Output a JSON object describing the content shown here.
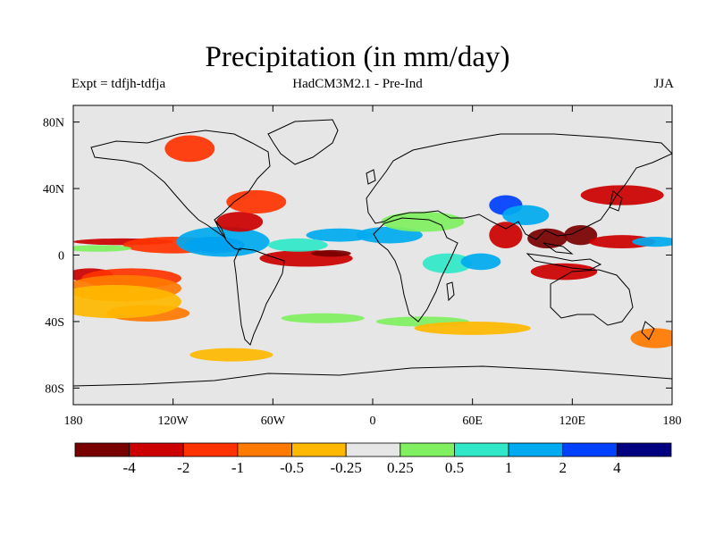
{
  "title": "Precipitation (in mm/day)",
  "subtitle_left": "Expt = tdfjh-tdfja",
  "subtitle_center": "HadCM3M2.1 - Pre-Ind",
  "subtitle_right": "JJA",
  "map": {
    "lon_range": [
      -180,
      180
    ],
    "lat_range": [
      -90,
      90
    ],
    "background_color": "#e6e6e6",
    "lon_ticks": [
      {
        "value": -180,
        "label": "180"
      },
      {
        "value": -120,
        "label": "120W"
      },
      {
        "value": -60,
        "label": "60W"
      },
      {
        "value": 0,
        "label": "0"
      },
      {
        "value": 60,
        "label": "60E"
      },
      {
        "value": 120,
        "label": "120E"
      },
      {
        "value": 180,
        "label": "180"
      }
    ],
    "lat_ticks": [
      {
        "value": 80,
        "label": "80N"
      },
      {
        "value": 40,
        "label": "40N"
      },
      {
        "value": 0,
        "label": "0"
      },
      {
        "value": -40,
        "label": "40S"
      },
      {
        "value": -80,
        "label": "80S"
      }
    ]
  },
  "colorbar": {
    "colors": [
      "#7a0000",
      "#cc0000",
      "#ff3300",
      "#ff7a00",
      "#ffb800",
      "#e6e6e6",
      "#80f060",
      "#30e8c8",
      "#00aaf0",
      "#0040ff",
      "#000080"
    ],
    "labels": [
      "-4",
      "-2",
      "-1",
      "-0.5",
      "-0.25",
      "0.25",
      "0.5",
      "1",
      "2",
      "4"
    ]
  },
  "chart_data": {
    "type": "heatmap",
    "title": "Precipitation (in mm/day)",
    "variable": "precipitation anomaly (mm/day)",
    "season": "JJA",
    "levels": [
      -4,
      -2,
      -1,
      -0.5,
      -0.25,
      0.25,
      0.5,
      1,
      2,
      4
    ],
    "features": [
      {
        "lon": -170,
        "lat": -12,
        "value": -2,
        "rx": 14,
        "ry": 4
      },
      {
        "lon": -145,
        "lat": -14,
        "value": -1,
        "rx": 30,
        "ry": 6
      },
      {
        "lon": -150,
        "lat": -20,
        "value": -0.5,
        "rx": 35,
        "ry": 8
      },
      {
        "lon": -135,
        "lat": -35,
        "value": -0.5,
        "rx": 25,
        "ry": 5
      },
      {
        "lon": -155,
        "lat": -28,
        "value": -0.25,
        "rx": 40,
        "ry": 10
      },
      {
        "lon": -150,
        "lat": 8,
        "value": -2,
        "rx": 30,
        "ry": 2
      },
      {
        "lon": -120,
        "lat": 6,
        "value": -1,
        "rx": 30,
        "ry": 5
      },
      {
        "lon": -165,
        "lat": 4,
        "value": 0.5,
        "rx": 20,
        "ry": 2
      },
      {
        "lon": -95,
        "lat": 6,
        "value": 4,
        "rx": 18,
        "ry": 5
      },
      {
        "lon": -90,
        "lat": 8,
        "value": 2,
        "rx": 28,
        "ry": 9
      },
      {
        "lon": -80,
        "lat": 20,
        "value": -2,
        "rx": 14,
        "ry": 6
      },
      {
        "lon": -70,
        "lat": 32,
        "value": -1,
        "rx": 18,
        "ry": 7
      },
      {
        "lon": -40,
        "lat": -2,
        "value": -2,
        "rx": 28,
        "ry": 5
      },
      {
        "lon": -25,
        "lat": 1,
        "value": -4,
        "rx": 12,
        "ry": 2
      },
      {
        "lon": -45,
        "lat": 6,
        "value": 1,
        "rx": 18,
        "ry": 4
      },
      {
        "lon": -20,
        "lat": 12,
        "value": 2,
        "rx": 20,
        "ry": 4
      },
      {
        "lon": 10,
        "lat": 12,
        "value": 2,
        "rx": 20,
        "ry": 5
      },
      {
        "lon": 30,
        "lat": 20,
        "value": 0.5,
        "rx": 25,
        "ry": 6
      },
      {
        "lon": 45,
        "lat": -5,
        "value": 1,
        "rx": 15,
        "ry": 6
      },
      {
        "lon": 65,
        "lat": -4,
        "value": 2,
        "rx": 12,
        "ry": 5
      },
      {
        "lon": 80,
        "lat": 30,
        "value": 4,
        "rx": 10,
        "ry": 6
      },
      {
        "lon": 92,
        "lat": 24,
        "value": 2,
        "rx": 14,
        "ry": 6
      },
      {
        "lon": 80,
        "lat": 12,
        "value": -2,
        "rx": 10,
        "ry": 8
      },
      {
        "lon": 105,
        "lat": 10,
        "value": -4,
        "rx": 12,
        "ry": 6
      },
      {
        "lon": 125,
        "lat": 12,
        "value": -4,
        "rx": 10,
        "ry": 6
      },
      {
        "lon": 115,
        "lat": -10,
        "value": -2,
        "rx": 20,
        "ry": 5
      },
      {
        "lon": 150,
        "lat": 36,
        "value": -2,
        "rx": 25,
        "ry": 6
      },
      {
        "lon": 150,
        "lat": 8,
        "value": -2,
        "rx": 20,
        "ry": 4
      },
      {
        "lon": 170,
        "lat": 8,
        "value": 2,
        "rx": 14,
        "ry": 3
      },
      {
        "lon": -110,
        "lat": 64,
        "value": -1,
        "rx": 15,
        "ry": 8
      },
      {
        "lon": -30,
        "lat": -38,
        "value": 0.5,
        "rx": 25,
        "ry": 3
      },
      {
        "lon": 30,
        "lat": -40,
        "value": 0.5,
        "rx": 28,
        "ry": 3
      },
      {
        "lon": 60,
        "lat": -44,
        "value": -0.25,
        "rx": 35,
        "ry": 4
      },
      {
        "lon": -85,
        "lat": -60,
        "value": -0.25,
        "rx": 25,
        "ry": 4
      },
      {
        "lon": 170,
        "lat": -50,
        "value": -0.5,
        "rx": 15,
        "ry": 6
      }
    ]
  }
}
